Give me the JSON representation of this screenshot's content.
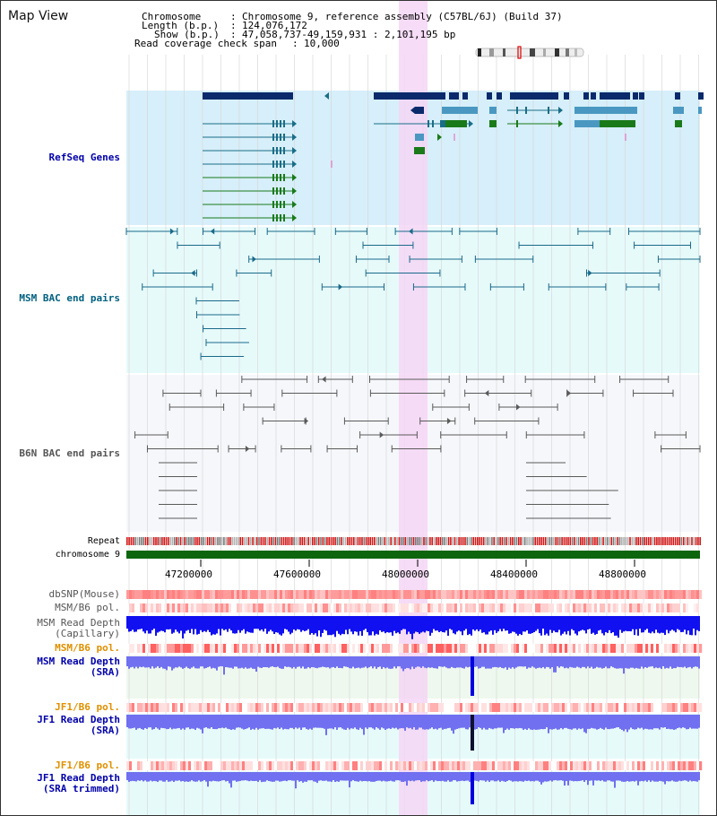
{
  "header": {
    "title": "Map View",
    "chromosome_key": "Chromosome",
    "chromosome_value": "Chromosome 9, reference assembly (C57BL/6J) (Build 37)",
    "length_key": "Length (b.p.)",
    "length_value": "124,076,172",
    "show_key": "Show (b.p.)",
    "show_value": "47,058,737-49,159,931 : 2,101,195 bp",
    "span_key": "Read coverage check span",
    "span_value": "10,000"
  },
  "tracks": {
    "refseq": "RefSeq Genes",
    "msm_bac": "MSM BAC end pairs",
    "b6n_bac": "B6N BAC end pairs",
    "repeat": "Repeat",
    "chromosome": "chromosome 9",
    "dbsnp": "dbSNP(Mouse)",
    "msm_b6_pol1": "MSM/B6 pol.",
    "msm_depth_cap_1": "MSM Read Depth",
    "msm_depth_cap_2": "(Capillary)",
    "msm_b6_pol2": "MSM/B6 pol.",
    "msm_depth_sra_1": "MSM Read Depth",
    "msm_depth_sra_2": "(SRA)",
    "jf1_b6_pol1": "JF1/B6 pol.",
    "jf1_depth_sra_1": "JF1 Read Depth",
    "jf1_depth_sra_2": "(SRA)",
    "jf1_b6_pol2": "JF1/B6 pol.",
    "jf1_depth_trim_1": "JF1 Read Depth",
    "jf1_depth_trim_2": "(SRA trimmed)"
  },
  "axis": {
    "ticks": [
      "47200000",
      "47600000",
      "48000000",
      "48400000",
      "48800000"
    ]
  },
  "colors": {
    "refseq_bg": "#d6effa",
    "msm_bac_bg": "#e6fafa",
    "b6n_bac_bg": "#f5f7fb",
    "highlight": "#f4d6f4",
    "gene_dark": "#0b2a6b",
    "gene_teal": "#1a6d87",
    "gene_blue": "#4a98c2",
    "gene_green": "#1a7a1a",
    "bac_msm": "#1a6a8a",
    "bac_b6n": "#5a5a5a",
    "chromosome_bar": "#0d660d",
    "label_blue": "#0000aa",
    "label_teal": "#006080",
    "label_gray": "#555555",
    "label_orange": "#e09000",
    "depth_blue": "#1010f0",
    "depth_sra": "#7070f0"
  }
}
